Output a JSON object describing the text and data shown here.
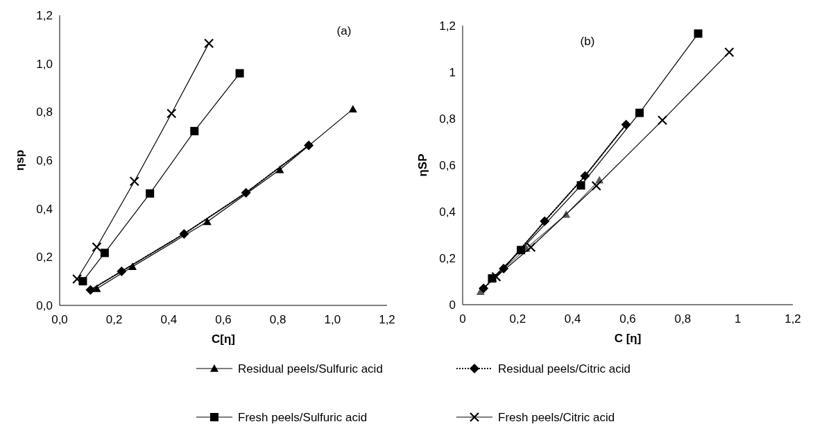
{
  "chart_data": [
    {
      "type": "line",
      "xlabel": "C[η]",
      "ylabel": "ηsp",
      "annotations": [
        "(a)"
      ],
      "legend": "bottom",
      "xlim": [
        0,
        1.2
      ],
      "ylim": [
        0,
        1.2
      ],
      "xticks": [
        {
          "value": 0,
          "label": "0,0"
        },
        {
          "value": 0.2,
          "label": "0,2"
        },
        {
          "value": 0.4,
          "label": "0,4"
        },
        {
          "value": 0.6,
          "label": "0,6"
        },
        {
          "value": 0.8,
          "label": "0,8"
        },
        {
          "value": 1,
          "label": "1,0"
        },
        {
          "value": 1.2,
          "label": "1,2"
        }
      ],
      "yticks": [
        {
          "value": 0,
          "label": "0,0"
        },
        {
          "value": 0.2,
          "label": "0,2"
        },
        {
          "value": 0.4,
          "label": "0,4"
        },
        {
          "value": 0.6,
          "label": "0,6"
        },
        {
          "value": 0.8,
          "label": "0,8"
        },
        {
          "value": 1,
          "label": "1,0"
        },
        {
          "value": 1.2,
          "label": "1,2"
        }
      ],
      "series": [
        {
          "name": "Residual peels/Sulfuric acid",
          "color": "#000000",
          "marker": "triangle",
          "line_style": "solid",
          "x": [
            0.136,
            0.267,
            0.541,
            0.807,
            1.075
          ],
          "values": [
            0.069,
            0.16,
            0.346,
            0.561,
            0.812
          ]
        },
        {
          "name": "Residual peels/Citric acid",
          "color": "#000000",
          "marker": "diamond",
          "line_style": "dotted",
          "x": [
            0.113,
            0.227,
            0.456,
            0.683,
            0.913
          ],
          "values": [
            0.064,
            0.141,
            0.296,
            0.466,
            0.662
          ]
        },
        {
          "name": "Fresh peels/Sulfuric acid",
          "color": "#000000",
          "marker": "square",
          "line_style": "solid",
          "x": [
            0.085,
            0.165,
            0.331,
            0.494,
            0.66
          ],
          "values": [
            0.1,
            0.217,
            0.463,
            0.721,
            0.96
          ]
        },
        {
          "name": "Fresh peels/Citric acid",
          "color": "#000000",
          "marker": "cross",
          "line_style": "solid",
          "x": [
            0.064,
            0.136,
            0.274,
            0.41,
            0.547
          ],
          "values": [
            0.109,
            0.241,
            0.513,
            0.794,
            1.084
          ]
        }
      ]
    },
    {
      "type": "line",
      "xlabel": "C [η]",
      "ylabel": "ηSP",
      "annotations": [
        "(b)"
      ],
      "xlim": [
        0,
        1.2
      ],
      "ylim": [
        0,
        1.2
      ],
      "xticks": [
        0,
        {
          "value": 0.2,
          "label": "0,2"
        },
        {
          "value": 0.4,
          "label": "0,4"
        },
        {
          "value": 0.6,
          "label": "0,6"
        },
        {
          "value": 0.8,
          "label": "0,8"
        },
        1,
        {
          "value": 1.2,
          "label": "1,2"
        }
      ],
      "yticks": [
        0,
        {
          "value": 0.2,
          "label": "0,2"
        },
        {
          "value": 0.4,
          "label": "0,4"
        },
        {
          "value": 0.6,
          "label": "0,6"
        },
        {
          "value": 0.8,
          "label": "0,8"
        },
        1,
        {
          "value": 1.2,
          "label": "1,2"
        }
      ],
      "series": [
        {
          "color": "#595959",
          "marker": "triangle",
          "line_style": "solid",
          "x": [
            0.065,
            0.109,
            0.231,
            0.376,
            0.497
          ],
          "values": [
            0.056,
            0.113,
            0.242,
            0.388,
            0.536
          ]
        },
        {
          "color": "#000000",
          "marker": "diamond",
          "line_style": "dotted",
          "x": [
            0.076,
            0.149,
            0.298,
            0.445,
            0.594
          ],
          "values": [
            0.07,
            0.155,
            0.359,
            0.554,
            0.775
          ]
        },
        {
          "color": "#000000",
          "marker": "square",
          "line_style": "solid",
          "x": [
            0.107,
            0.212,
            0.43,
            0.643,
            0.856
          ],
          "values": [
            0.113,
            0.235,
            0.513,
            0.825,
            1.166
          ]
        },
        {
          "color": "#000000",
          "marker": "cross",
          "line_style": "solid",
          "x": [
            0.122,
            0.248,
            0.486,
            0.726,
            0.969
          ],
          "values": [
            0.12,
            0.247,
            0.511,
            0.793,
            1.086
          ]
        }
      ]
    }
  ]
}
